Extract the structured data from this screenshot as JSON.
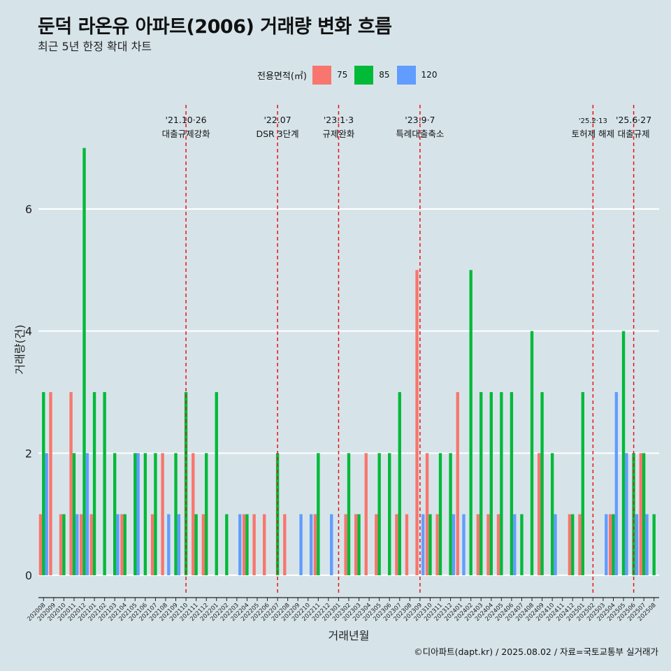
{
  "title": "둔덕 라온유 아파트(2006) 거래량 변화 흐름",
  "subtitle": "최근 5년 한정 확대 차트",
  "caption": "©디아파트(dapt.kr) / 2025.08.02 / 자료=국토교통부 실거래가",
  "legend": {
    "title": "전용면적(㎡)",
    "items": [
      {
        "label": "75",
        "color": "#f8766d"
      },
      {
        "label": "85",
        "color": "#00ba38"
      },
      {
        "label": "120",
        "color": "#619cff"
      }
    ]
  },
  "chart_data": {
    "type": "bar",
    "xlabel": "거래년월",
    "ylabel": "거래량(건)",
    "ylim": [
      0,
      7
    ],
    "yticks": [
      0,
      2,
      4,
      6
    ],
    "grid": true,
    "legend_position": "top",
    "categories": [
      "202008",
      "202009",
      "202010",
      "202011",
      "202012",
      "202101",
      "202102",
      "202103",
      "202104",
      "202105",
      "202106",
      "202107",
      "202108",
      "202109",
      "202110",
      "202111",
      "202112",
      "202201",
      "202202",
      "202203",
      "202204",
      "202205",
      "202206",
      "202207",
      "202208",
      "202209",
      "202210",
      "202211",
      "202212",
      "202301",
      "202302",
      "202303",
      "202304",
      "202305",
      "202306",
      "202307",
      "202308",
      "202309",
      "202310",
      "202311",
      "202312",
      "202401",
      "202402",
      "202403",
      "202404",
      "202405",
      "202406",
      "202407",
      "202408",
      "202409",
      "202410",
      "202411",
      "202412",
      "202501",
      "202502",
      "202503",
      "202504",
      "202505",
      "202506",
      "202507",
      "202508"
    ],
    "series": [
      {
        "name": "75",
        "color": "#f8766d",
        "values": [
          1,
          3,
          1,
          3,
          1,
          1,
          0,
          0,
          1,
          0,
          0,
          1,
          2,
          0,
          0,
          2,
          1,
          0,
          0,
          0,
          1,
          1,
          1,
          0,
          1,
          0,
          0,
          1,
          0,
          0,
          1,
          1,
          2,
          1,
          0,
          1,
          1,
          5,
          2,
          1,
          0,
          3,
          0,
          1,
          1,
          1,
          0,
          0,
          0,
          2,
          0,
          0,
          1,
          1,
          0,
          0,
          1,
          0,
          0,
          2,
          0
        ]
      },
      {
        "name": "85",
        "color": "#00ba38",
        "values": [
          3,
          0,
          1,
          2,
          7,
          3,
          3,
          2,
          1,
          2,
          2,
          2,
          0,
          2,
          3,
          1,
          2,
          3,
          1,
          0,
          1,
          0,
          0,
          2,
          0,
          0,
          0,
          2,
          0,
          0,
          2,
          1,
          0,
          2,
          2,
          3,
          0,
          0,
          1,
          2,
          2,
          0,
          5,
          3,
          3,
          3,
          3,
          1,
          4,
          3,
          2,
          0,
          1,
          3,
          0,
          0,
          1,
          4,
          2,
          2,
          1
        ]
      },
      {
        "name": "120",
        "color": "#619cff",
        "values": [
          2,
          0,
          0,
          1,
          2,
          0,
          0,
          1,
          0,
          2,
          0,
          0,
          1,
          1,
          0,
          0,
          0,
          0,
          0,
          1,
          0,
          0,
          0,
          0,
          0,
          1,
          1,
          0,
          1,
          0,
          0,
          0,
          0,
          0,
          0,
          0,
          0,
          1,
          0,
          0,
          1,
          1,
          0,
          0,
          0,
          0,
          1,
          0,
          0,
          0,
          1,
          0,
          0,
          0,
          0,
          1,
          3,
          2,
          1,
          1,
          0
        ]
      }
    ],
    "annotations": [
      {
        "x": "202110",
        "date": "'21.10·26",
        "label": "대출규제강화"
      },
      {
        "x": "202207",
        "date": "'22.07",
        "label": "DSR 3단계"
      },
      {
        "x": "202301",
        "date": "'23.1·3",
        "label": "규제완화"
      },
      {
        "x": "202309",
        "date": "'23.9·7",
        "label": "특례대출축소"
      },
      {
        "x": "202502",
        "date": "'25.2·13",
        "label": "토허제 해제"
      },
      {
        "x": "202506",
        "date": "'25.6·27",
        "label": "대출규제"
      }
    ]
  }
}
